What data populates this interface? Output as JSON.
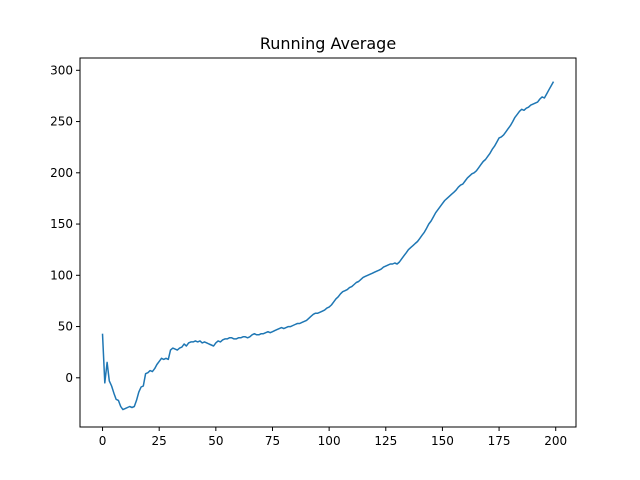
{
  "chart_data": {
    "type": "line",
    "title": "Running Average",
    "xlabel": "",
    "ylabel": "",
    "xlim": [
      -9.95,
      208.95
    ],
    "ylim": [
      -48,
      312
    ],
    "xticks": [
      0,
      25,
      50,
      75,
      100,
      125,
      150,
      175,
      200
    ],
    "yticks": [
      0,
      50,
      100,
      150,
      200,
      250,
      300
    ],
    "grid": false,
    "legend": "none",
    "line_color": "#1f77b4",
    "series": [
      {
        "x": [
          0,
          1,
          2,
          3,
          4,
          5,
          6,
          7,
          8,
          9,
          10,
          11,
          12,
          13,
          14,
          15,
          16,
          17,
          18,
          19,
          20,
          21,
          22,
          23,
          24,
          25,
          26,
          27,
          28,
          29,
          30,
          31,
          32,
          33,
          34,
          35,
          36,
          37,
          38,
          39,
          40,
          41,
          42,
          43,
          44,
          45,
          46,
          47,
          48,
          49,
          50,
          51,
          52,
          53,
          54,
          55,
          56,
          57,
          58,
          59,
          60,
          61,
          62,
          63,
          64,
          65,
          66,
          67,
          68,
          69,
          70,
          71,
          72,
          73,
          74,
          75,
          76,
          77,
          78,
          79,
          80,
          81,
          82,
          83,
          84,
          85,
          86,
          87,
          88,
          89,
          90,
          91,
          92,
          93,
          94,
          95,
          96,
          97,
          98,
          99,
          100,
          101,
          102,
          103,
          104,
          105,
          106,
          107,
          108,
          109,
          110,
          111,
          112,
          113,
          114,
          115,
          116,
          117,
          118,
          119,
          120,
          121,
          122,
          123,
          124,
          125,
          126,
          127,
          128,
          129,
          130,
          131,
          132,
          133,
          134,
          135,
          136,
          137,
          138,
          139,
          140,
          141,
          142,
          143,
          144,
          145,
          146,
          147,
          148,
          149,
          150,
          151,
          152,
          153,
          154,
          155,
          156,
          157,
          158,
          159,
          160,
          161,
          162,
          163,
          164,
          165,
          166,
          167,
          168,
          169,
          170,
          171,
          172,
          173,
          174,
          175,
          176,
          177,
          178,
          179,
          180,
          181,
          182,
          183,
          184,
          185,
          186,
          187,
          188,
          189,
          190,
          191,
          192,
          193,
          194,
          195,
          196,
          197,
          198,
          199
        ],
        "y": [
          43,
          -5,
          15,
          -3,
          -8,
          -15,
          -21,
          -22,
          -28,
          -31,
          -30,
          -29,
          -28,
          -29,
          -28,
          -22,
          -14,
          -9,
          -8,
          4,
          5,
          7,
          6,
          9,
          13,
          16,
          19,
          18,
          19,
          18,
          27,
          29,
          28,
          27,
          29,
          30,
          33,
          31,
          34,
          35,
          35,
          36,
          35,
          36,
          34,
          35,
          34,
          33,
          32,
          31,
          34,
          36,
          35,
          37,
          38,
          38,
          39,
          39,
          38,
          38,
          39,
          39,
          40,
          40,
          39,
          40,
          42,
          43,
          42,
          42,
          43,
          43,
          44,
          45,
          44,
          45,
          46,
          47,
          48,
          49,
          48,
          49,
          50,
          50,
          51,
          52,
          53,
          53,
          54,
          55,
          56,
          58,
          60,
          62,
          63,
          63,
          64,
          65,
          66,
          68,
          69,
          71,
          74,
          77,
          79,
          82,
          84,
          85,
          86,
          88,
          89,
          91,
          93,
          94,
          96,
          98,
          99,
          100,
          101,
          102,
          103,
          104,
          105,
          106,
          108,
          109,
          110,
          111,
          111,
          112,
          111,
          113,
          116,
          119,
          122,
          125,
          127,
          129,
          131,
          133,
          136,
          139,
          142,
          146,
          150,
          153,
          157,
          161,
          164,
          167,
          170,
          173,
          175,
          177,
          179,
          181,
          183,
          186,
          188,
          189,
          192,
          195,
          197,
          199,
          200,
          202,
          205,
          208,
          211,
          213,
          216,
          219,
          223,
          226,
          230,
          234,
          235,
          237,
          240,
          243,
          246,
          250,
          254,
          257,
          260,
          262,
          261,
          263,
          264,
          266,
          267,
          268,
          269,
          272,
          274,
          273,
          277,
          281,
          285,
          289
        ]
      }
    ]
  }
}
